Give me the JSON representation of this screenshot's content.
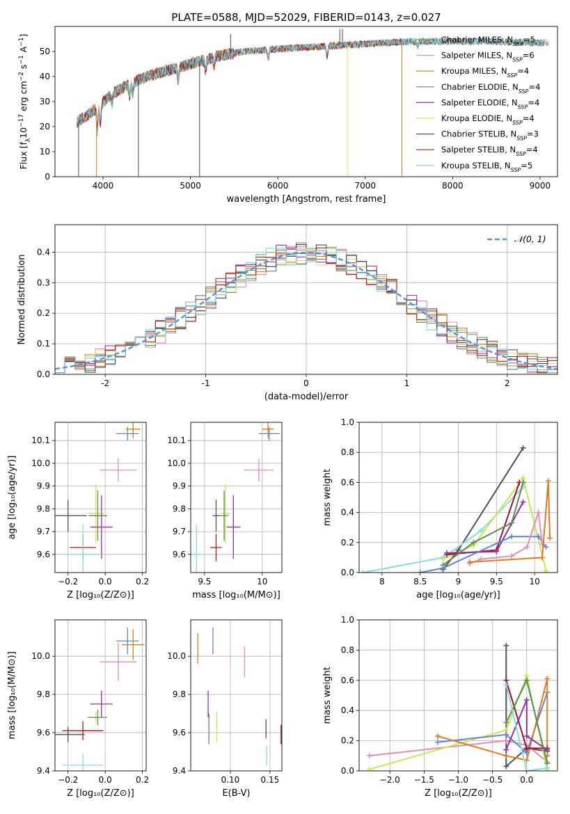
{
  "colors": [
    "#6b9e6b",
    "#e38ac6",
    "#e07a1f",
    "#5a8a5a",
    "#9b2fae",
    "#d6e86a",
    "#4a4a4a",
    "#b01818",
    "#7fd6e0"
  ],
  "extra_colors": {
    "blue": "#5b86d6",
    "pink": "#e88bb4",
    "lime": "#c8e84a",
    "cyan": "#8adbe0",
    "orange": "#e07a1f",
    "gray": "#505050",
    "crimson": "#a01030",
    "purple": "#9030a0",
    "green": "#5a8a5a"
  },
  "chart_data": [
    {
      "id": "spectrum",
      "type": "line",
      "title": "PLATE=0588, MJD=52029, FIBERID=0143, z=0.027",
      "xlabel": "wavelength [Angstrom, rest frame]",
      "ylabel_parts": [
        "Flux [f",
        "λ",
        "10",
        "−17",
        " erg cm",
        "−2",
        " s",
        "−1",
        " A",
        "−1",
        "]"
      ],
      "xlim": [
        3450,
        9200
      ],
      "ylim": [
        0,
        60
      ],
      "xticks": [
        4000,
        5000,
        6000,
        7000,
        8000,
        9000
      ],
      "yticks": [
        0,
        10,
        20,
        30,
        40,
        50
      ],
      "legend_position": "right",
      "series": [
        {
          "name": "Chabrier MILES, N",
          "sub": "SSP",
          "suffix": "=5"
        },
        {
          "name": "Salpeter MILES, N",
          "sub": "SSP",
          "suffix": "=6"
        },
        {
          "name": "Kroupa MILES, N",
          "sub": "SSP",
          "suffix": "=4"
        },
        {
          "name": "Chabrier ELODIE, N",
          "sub": "SSP",
          "suffix": "=4"
        },
        {
          "name": "Salpeter ELODIE, N",
          "sub": "SSP",
          "suffix": "=4"
        },
        {
          "name": "Kroupa ELODIE, N",
          "sub": "SSP",
          "suffix": "=4"
        },
        {
          "name": "Chabrier STELIB, N",
          "sub": "SSP",
          "suffix": "=3"
        },
        {
          "name": "Salpeter STELIB, N",
          "sub": "SSP",
          "suffix": "=4"
        },
        {
          "name": "Kroupa STELIB, N",
          "sub": "SSP",
          "suffix": "=5"
        }
      ],
      "continuum": [
        [
          3700,
          22
        ],
        [
          3800,
          24
        ],
        [
          3950,
          28
        ],
        [
          4100,
          33
        ],
        [
          4300,
          37
        ],
        [
          4500,
          40
        ],
        [
          4800,
          43
        ],
        [
          5000,
          45
        ],
        [
          5300,
          48
        ],
        [
          5600,
          50
        ],
        [
          6000,
          51
        ],
        [
          6500,
          52
        ],
        [
          7000,
          53
        ],
        [
          7500,
          54
        ],
        [
          8000,
          54
        ],
        [
          8500,
          54
        ],
        [
          9000,
          53.5
        ]
      ],
      "spikes": [
        {
          "x": 3720,
          "y": 0,
          "series": 6
        },
        {
          "x": 3925,
          "y": 0,
          "series": 2
        },
        {
          "x": 4405,
          "y": 0,
          "series": 6
        },
        {
          "x": 5105,
          "y": 0,
          "series": 6
        },
        {
          "x": 5460,
          "y": 57,
          "series": 6
        },
        {
          "x": 6800,
          "y": 0,
          "series": 5
        },
        {
          "x": 6710,
          "y": 59,
          "series": 6
        },
        {
          "x": 7420,
          "y": 0,
          "series": 2
        },
        {
          "x": 6740,
          "y": 59,
          "series": 6
        }
      ]
    },
    {
      "id": "residuals",
      "type": "line",
      "xlabel": "(data-model)/error",
      "ylabel": "Normed distribution",
      "xlim": [
        -2.5,
        2.5
      ],
      "ylim": [
        0,
        0.49
      ],
      "xticks": [
        -2,
        -1,
        0,
        1,
        2
      ],
      "yticks": [
        0.0,
        0.1,
        0.2,
        0.3,
        0.4
      ],
      "grid": true,
      "legend_position": "top-right",
      "reference_curve": {
        "label": "𝒩(0, 1)",
        "mean": 0,
        "sigma": 1,
        "color": "#5b8fd6"
      },
      "bin_width": 0.1
    },
    {
      "id": "age-vs-Z",
      "type": "scatter",
      "xlabel": "Z [log₁₀(Z/Z⊙)]",
      "ylabel": "age  [log₁₀(age/yr)]",
      "xlim": [
        -0.27,
        0.22
      ],
      "ylim": [
        9.52,
        10.18
      ],
      "xticks": [
        -0.2,
        0.0,
        0.2
      ],
      "xticklabels": [
        "−0.2",
        "0.0",
        "0.2"
      ],
      "yticks": [
        9.6,
        9.7,
        9.8,
        9.9,
        10.0,
        10.1
      ],
      "grid": true,
      "points": [
        {
          "x": 0.12,
          "y": 10.13,
          "xerr": 0.06,
          "yerr": 0.03,
          "color": "#5b86d6"
        },
        {
          "x": 0.15,
          "y": 10.15,
          "xerr": 0.04,
          "yerr": 0.04,
          "color": "#e07a1f"
        },
        {
          "x": 0.07,
          "y": 9.97,
          "xerr": 0.1,
          "yerr": 0.05,
          "color": "#e88bb4"
        },
        {
          "x": -0.05,
          "y": 9.78,
          "xerr": 0.04,
          "yerr": 0.13,
          "color": "#c8e84a"
        },
        {
          "x": -0.04,
          "y": 9.77,
          "xerr": 0.05,
          "yerr": 0.11,
          "color": "#5a8a5a"
        },
        {
          "x": -0.2,
          "y": 9.77,
          "xerr": 0.1,
          "yerr": 0.07,
          "color": "#505050"
        },
        {
          "x": -0.02,
          "y": 9.72,
          "xerr": 0.06,
          "yerr": 0.14,
          "color": "#9030a0"
        },
        {
          "x": -0.12,
          "y": 9.63,
          "xerr": 0.07,
          "yerr": 0.06,
          "color": "#b01818"
        },
        {
          "x": -0.12,
          "y": 9.6,
          "xerr": 0.1,
          "yerr": 0.13,
          "color": "#8adbe0"
        }
      ]
    },
    {
      "id": "age-vs-mass",
      "type": "scatter",
      "xlabel": "mass [log₁₀(M/M⊙)]",
      "xlim": [
        9.38,
        10.17
      ],
      "ylim": [
        9.52,
        10.18
      ],
      "xticks": [
        9.5,
        10.0
      ],
      "yticks": [
        9.6,
        9.7,
        9.8,
        9.9,
        10.0,
        10.1
      ],
      "grid": true,
      "points": [
        {
          "x": 10.06,
          "y": 10.13,
          "xerr": 0.09,
          "yerr": 0.03,
          "color": "#5b86d6"
        },
        {
          "x": 10.05,
          "y": 10.15,
          "xerr": 0.05,
          "yerr": 0.04,
          "color": "#e07a1f"
        },
        {
          "x": 9.97,
          "y": 9.97,
          "xerr": 0.13,
          "yerr": 0.05,
          "color": "#e88bb4"
        },
        {
          "x": 9.68,
          "y": 9.78,
          "xerr": 0.04,
          "yerr": 0.13,
          "color": "#c8e84a"
        },
        {
          "x": 9.67,
          "y": 9.77,
          "xerr": 0.04,
          "yerr": 0.11,
          "color": "#5a8a5a"
        },
        {
          "x": 9.6,
          "y": 9.77,
          "xerr": 0.03,
          "yerr": 0.07,
          "color": "#505050"
        },
        {
          "x": 9.75,
          "y": 9.72,
          "xerr": 0.06,
          "yerr": 0.14,
          "color": "#9030a0"
        },
        {
          "x": 9.6,
          "y": 9.63,
          "xerr": 0.05,
          "yerr": 0.06,
          "color": "#b01818"
        },
        {
          "x": 9.43,
          "y": 9.6,
          "xerr": 0.05,
          "yerr": 0.13,
          "color": "#8adbe0"
        }
      ]
    },
    {
      "id": "mass-weight-vs-age",
      "type": "line",
      "xlabel": "age  [log₁₀(age/yr)]",
      "ylabel": "mass weight",
      "xlim": [
        7.7,
        10.3
      ],
      "ylim": [
        0,
        1.0
      ],
      "xticks": [
        8.0,
        8.5,
        9.0,
        9.5,
        10.0
      ],
      "yticks": [
        0.0,
        0.2,
        0.4,
        0.6,
        0.8,
        1.0
      ],
      "grid": true,
      "series": [
        {
          "color": "#505050",
          "points": [
            [
              8.8,
              0.02
            ],
            [
              9.0,
              0.15
            ],
            [
              9.85,
              0.83
            ]
          ]
        },
        {
          "color": "#8adbe0",
          "points": [
            [
              7.75,
              0.0
            ],
            [
              8.8,
              0.1
            ],
            [
              9.3,
              0.28
            ],
            [
              9.85,
              0.57
            ]
          ]
        },
        {
          "color": "#c8e84a",
          "points": [
            [
              8.8,
              0.09
            ],
            [
              9.2,
              0.18
            ],
            [
              9.85,
              0.63
            ],
            [
              10.15,
              0.01
            ]
          ]
        },
        {
          "color": "#a01030",
          "points": [
            [
              8.85,
              0.12
            ],
            [
              9.5,
              0.15
            ],
            [
              9.8,
              0.6
            ]
          ]
        },
        {
          "color": "#9030a0",
          "points": [
            [
              8.85,
              0.13
            ],
            [
              9.5,
              0.14
            ],
            [
              9.85,
              0.47
            ]
          ]
        },
        {
          "color": "#5a8a5a",
          "points": [
            [
              8.8,
              0.05
            ],
            [
              9.2,
              0.2
            ],
            [
              9.7,
              0.33
            ],
            [
              9.85,
              0.6
            ]
          ]
        },
        {
          "color": "#5b86d6",
          "points": [
            [
              8.5,
              0.0
            ],
            [
              8.8,
              0.03
            ],
            [
              9.7,
              0.24
            ],
            [
              10.05,
              0.24
            ],
            [
              10.15,
              0.17
            ]
          ]
        },
        {
          "color": "#e88bb4",
          "points": [
            [
              9.15,
              0.06
            ],
            [
              9.3,
              0.09
            ],
            [
              9.7,
              0.11
            ],
            [
              9.9,
              0.17
            ],
            [
              10.05,
              0.4
            ],
            [
              10.1,
              0.19
            ]
          ]
        },
        {
          "color": "#e07a1f",
          "points": [
            [
              9.15,
              0.07
            ],
            [
              10.1,
              0.1
            ],
            [
              10.18,
              0.61
            ],
            [
              10.2,
              0.23
            ]
          ]
        }
      ]
    },
    {
      "id": "mass-vs-Z",
      "type": "scatter",
      "xlabel": "Z [log₁₀(Z/Z⊙)]",
      "ylabel": "mass [log₁₀(M/M⊙)]",
      "xlim": [
        -0.27,
        0.22
      ],
      "ylim": [
        9.4,
        10.19
      ],
      "xticks": [
        -0.2,
        0.0,
        0.2
      ],
      "xticklabels": [
        "−0.2",
        "0.0",
        "0.2"
      ],
      "yticks": [
        9.4,
        9.6,
        9.8,
        10.0
      ],
      "grid": true,
      "points": [
        {
          "x": 0.12,
          "y": 10.08,
          "xerr": 0.06,
          "yerr": 0.07,
          "color": "#5b86d6"
        },
        {
          "x": 0.15,
          "y": 10.06,
          "xerr": 0.06,
          "yerr": 0.08,
          "color": "#e07a1f"
        },
        {
          "x": 0.07,
          "y": 9.97,
          "xerr": 0.1,
          "yerr": 0.1,
          "color": "#e88bb4"
        },
        {
          "x": -0.05,
          "y": 9.68,
          "xerr": 0.05,
          "yerr": 0.03,
          "color": "#c8e84a"
        },
        {
          "x": -0.04,
          "y": 9.68,
          "xerr": 0.05,
          "yerr": 0.04,
          "color": "#5a8a5a"
        },
        {
          "x": -0.2,
          "y": 9.59,
          "xerr": 0.09,
          "yerr": 0.04,
          "color": "#505050"
        },
        {
          "x": -0.02,
          "y": 9.75,
          "xerr": 0.06,
          "yerr": 0.07,
          "color": "#9030a0"
        },
        {
          "x": -0.12,
          "y": 9.61,
          "xerr": 0.11,
          "yerr": 0.05,
          "color": "#b01818"
        },
        {
          "x": -0.12,
          "y": 9.43,
          "xerr": 0.11,
          "yerr": 0.06,
          "color": "#8adbe0"
        }
      ]
    },
    {
      "id": "mass-vs-ebv",
      "type": "scatter",
      "xlabel": "E(B-V)",
      "xlim": [
        0.05,
        0.165
      ],
      "ylim": [
        9.4,
        10.19
      ],
      "xticks": [
        0.1,
        0.15
      ],
      "xticklabels": [
        "0.10",
        "0.15"
      ],
      "yticks": [
        9.4,
        9.6,
        9.8,
        10.0
      ],
      "grid": true,
      "points": [
        {
          "x": 0.078,
          "y": 10.08,
          "xerr": 0,
          "yerr": 0.07,
          "color": "#5b86d6"
        },
        {
          "x": 0.059,
          "y": 10.04,
          "xerr": 0,
          "yerr": 0.08,
          "color": "#e07a1f"
        },
        {
          "x": 0.118,
          "y": 9.97,
          "xerr": 0,
          "yerr": 0.08,
          "color": "#e88bb4"
        },
        {
          "x": 0.083,
          "y": 9.63,
          "xerr": 0,
          "yerr": 0.08,
          "color": "#c8e84a"
        },
        {
          "x": 0.073,
          "y": 9.62,
          "xerr": 0,
          "yerr": 0.08,
          "color": "#5a8a5a"
        },
        {
          "x": 0.145,
          "y": 9.62,
          "xerr": 0,
          "yerr": 0.05,
          "color": "#505050"
        },
        {
          "x": 0.072,
          "y": 9.75,
          "xerr": 0,
          "yerr": 0.07,
          "color": "#9030a0"
        },
        {
          "x": 0.164,
          "y": 9.59,
          "xerr": 0,
          "yerr": 0.05,
          "color": "#b01818"
        },
        {
          "x": 0.146,
          "y": 9.48,
          "xerr": 0,
          "yerr": 0.05,
          "color": "#8adbe0"
        }
      ]
    },
    {
      "id": "mass-weight-vs-Z",
      "type": "line",
      "xlabel": "Z [log₁₀(Z/Z⊙)]",
      "ylabel": "mass weight",
      "xlim": [
        -2.45,
        0.45
      ],
      "ylim": [
        0,
        1.0
      ],
      "xticks": [
        -2.0,
        -1.5,
        -1.0,
        -0.5,
        0.0
      ],
      "xticklabels": [
        "−2.0",
        "−1.5",
        "−1.0",
        "−0.5",
        "0.0"
      ],
      "yticks": [
        0.0,
        0.2,
        0.4,
        0.6,
        0.8,
        1.0
      ],
      "grid": true,
      "series": [
        {
          "color": "#505050",
          "points": [
            [
              -0.3,
              0.83
            ],
            [
              -0.3,
              0.03
            ],
            [
              0.0,
              0.15
            ],
            [
              0.3,
              0.13
            ]
          ]
        },
        {
          "color": "#e88bb4",
          "points": [
            [
              -2.3,
              0.1
            ],
            [
              -0.3,
              0.2
            ],
            [
              0.0,
              0.17
            ],
            [
              0.3,
              0.06
            ]
          ]
        },
        {
          "color": "#c8e84a",
          "points": [
            [
              -2.3,
              0.01
            ],
            [
              -0.3,
              0.27
            ],
            [
              0.0,
              0.63
            ],
            [
              0.3,
              0.01
            ]
          ]
        },
        {
          "color": "#5b86d6",
          "points": [
            [
              -1.3,
              0.19
            ],
            [
              -0.3,
              0.24
            ],
            [
              0.0,
              0.12
            ],
            [
              0.3,
              0.52
            ]
          ]
        },
        {
          "color": "#e07a1f",
          "points": [
            [
              -1.3,
              0.23
            ],
            [
              -0.3,
              0.1
            ],
            [
              0.0,
              0.07
            ],
            [
              0.3,
              0.61
            ],
            [
              0.3,
              0.1
            ]
          ]
        },
        {
          "color": "#a01030",
          "points": [
            [
              -0.3,
              0.6
            ],
            [
              0.0,
              0.15
            ],
            [
              0.3,
              0.15
            ]
          ]
        },
        {
          "color": "#9030a0",
          "points": [
            [
              -0.3,
              0.14
            ],
            [
              0.0,
              0.47
            ],
            [
              0.0,
              0.23
            ],
            [
              0.3,
              0.14
            ]
          ]
        },
        {
          "color": "#5a8a5a",
          "points": [
            [
              -0.3,
              0.32
            ],
            [
              0.0,
              0.6
            ],
            [
              0.3,
              0.05
            ]
          ]
        },
        {
          "color": "#8adbe0",
          "points": [
            [
              -0.3,
              0.57
            ],
            [
              0.0,
              0.0
            ],
            [
              0.3,
              0.02
            ]
          ]
        }
      ]
    }
  ]
}
